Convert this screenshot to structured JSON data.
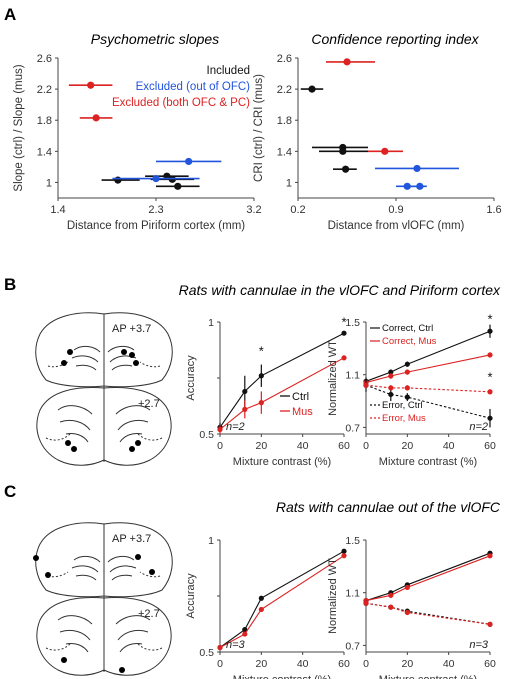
{
  "figure": {
    "panels": [
      {
        "letter": "A",
        "title_left": "Psychometric slopes",
        "title_right": "Confidence reporting index"
      },
      {
        "letter": "B",
        "title": "Rats with cannulae in the vlOFC and Piriform cortex"
      },
      {
        "letter": "C",
        "title": "Rats with cannulae out of the vlOFC"
      }
    ]
  },
  "colors": {
    "included": "#111111",
    "excluded_out_ofc": "#2255dd",
    "excluded_both": "#dd2222",
    "mus": "#dd2222",
    "ctrl": "#111111",
    "axis": "#444444"
  },
  "brain": {
    "b": {
      "label_top": "AP +3.7",
      "label_bottom": "+2.7"
    },
    "c": {
      "label_top": "AP +3.7",
      "label_bottom": "+2.7"
    }
  },
  "chart_data": [
    {
      "id": "a-left",
      "type": "scatter",
      "title": "Psychometric slopes",
      "xlabel": "Distance from Piriform cortex (mm)",
      "ylabel": "Slope (ctrl) / Slope (mus)",
      "xlim": [
        1.4,
        3.2
      ],
      "ylim": [
        0.8,
        2.6
      ],
      "xticks": [
        "1.4",
        "2.3",
        "3.2"
      ],
      "yticks": [
        "1",
        "1.4",
        "1.8",
        "2.2",
        "2.6"
      ],
      "legend": [
        "Included",
        "Excluded (out of OFC)",
        "Excluded (both OFC & PC)"
      ],
      "series": [
        {
          "name": "Included",
          "group": "included",
          "points": [
            {
              "x": 1.95,
              "y": 1.03,
              "xerr": [
                1.8,
                2.15
              ]
            },
            {
              "x": 2.4,
              "y": 1.08,
              "xerr": [
                2.2,
                2.6
              ]
            },
            {
              "x": 2.45,
              "y": 1.04,
              "xerr": [
                2.25,
                2.65
              ]
            },
            {
              "x": 2.5,
              "y": 0.95,
              "xerr": [
                2.3,
                2.7
              ]
            }
          ]
        },
        {
          "name": "Excluded (out of OFC)",
          "group": "excluded_out_ofc",
          "points": [
            {
              "x": 2.3,
              "y": 1.05,
              "xerr": [
                1.9,
                2.7
              ]
            },
            {
              "x": 2.6,
              "y": 1.27,
              "xerr": [
                2.3,
                2.9
              ]
            }
          ]
        },
        {
          "name": "Excluded (both OFC & PC)",
          "group": "excluded_both",
          "points": [
            {
              "x": 1.7,
              "y": 2.25,
              "xerr": [
                1.5,
                1.9
              ]
            },
            {
              "x": 1.75,
              "y": 1.83,
              "xerr": [
                1.6,
                1.9
              ]
            }
          ]
        }
      ]
    },
    {
      "id": "a-right",
      "type": "scatter",
      "title": "Confidence reporting index",
      "xlabel": "Distance from vlOFC (mm)",
      "ylabel": "CRI (ctrl) / CRI (mus)",
      "xlim": [
        0.2,
        1.6
      ],
      "ylim": [
        0.8,
        2.6
      ],
      "xticks": [
        "0.2",
        "0.9",
        "1.6"
      ],
      "yticks": [
        "1",
        "1.4",
        "1.8",
        "2.2",
        "2.6"
      ],
      "series": [
        {
          "name": "Included",
          "group": "included",
          "points": [
            {
              "x": 0.3,
              "y": 2.2,
              "xerr": [
                0.22,
                0.38
              ]
            },
            {
              "x": 0.52,
              "y": 1.45,
              "xerr": [
                0.3,
                0.7
              ]
            },
            {
              "x": 0.52,
              "y": 1.4,
              "xerr": [
                0.35,
                0.7
              ]
            },
            {
              "x": 0.54,
              "y": 1.17,
              "xerr": [
                0.45,
                0.62
              ]
            }
          ]
        },
        {
          "name": "Excluded (out of OFC)",
          "group": "excluded_out_ofc",
          "points": [
            {
              "x": 1.05,
              "y": 1.18,
              "xerr": [
                0.75,
                1.35
              ]
            },
            {
              "x": 0.98,
              "y": 0.95,
              "xerr": [
                0.9,
                1.1
              ]
            },
            {
              "x": 1.07,
              "y": 0.95,
              "xerr": [
                0.98,
                1.12
              ]
            }
          ]
        },
        {
          "name": "Excluded (both OFC & PC)",
          "group": "excluded_both",
          "points": [
            {
              "x": 0.55,
              "y": 2.55,
              "xerr": [
                0.4,
                0.75
              ]
            },
            {
              "x": 0.82,
              "y": 1.4,
              "xerr": [
                0.7,
                0.95
              ]
            }
          ]
        }
      ]
    },
    {
      "id": "b-accuracy",
      "type": "line",
      "xlabel": "Mixture contrast (%)",
      "ylabel": "Accuracy",
      "xlim": [
        0,
        60
      ],
      "ylim": [
        0.5,
        1.0
      ],
      "xticks": [
        "0",
        "20",
        "40",
        "60"
      ],
      "yticks": [
        "0.5",
        "",
        "1"
      ],
      "annotation": "n=2",
      "series": [
        {
          "name": "Ctrl",
          "group": "ctrl",
          "x": [
            0,
            12,
            20,
            60
          ],
          "values": [
            0.53,
            0.69,
            0.76,
            0.95
          ],
          "err": [
            0.02,
            0.07,
            0.05,
            0.01
          ]
        },
        {
          "name": "Mus",
          "group": "mus",
          "x": [
            0,
            12,
            20,
            60
          ],
          "values": [
            0.52,
            0.61,
            0.64,
            0.84
          ],
          "err": [
            0.02,
            0.04,
            0.05,
            0.01
          ]
        }
      ],
      "stars": [
        {
          "x": 20,
          "y": 0.85
        },
        {
          "x": 60,
          "y": 0.98
        }
      ]
    },
    {
      "id": "b-wt",
      "type": "line",
      "xlabel": "Mixture contrast (%)",
      "ylabel": "Normalized WT",
      "xlim": [
        0,
        60
      ],
      "ylim": [
        0.65,
        1.5
      ],
      "xticks": [
        "0",
        "20",
        "40",
        "60"
      ],
      "yticks": [
        "0.7",
        "1.1",
        "1.5"
      ],
      "annotation": "n=2",
      "legend": [
        "Correct, Ctrl",
        "Correct, Mus",
        "Error, Ctrl",
        "Error, Mus"
      ],
      "series": [
        {
          "name": "Correct, Ctrl",
          "group": "ctrl",
          "dashed": false,
          "x": [
            0,
            12,
            20,
            60
          ],
          "values": [
            1.05,
            1.12,
            1.18,
            1.43
          ],
          "err": [
            0.03,
            0.02,
            0.02,
            0.05
          ]
        },
        {
          "name": "Correct, Mus",
          "group": "mus",
          "dashed": false,
          "x": [
            0,
            12,
            20,
            60
          ],
          "values": [
            1.04,
            1.09,
            1.12,
            1.25
          ],
          "err": [
            0.02,
            0.02,
            0.02,
            0.02
          ]
        },
        {
          "name": "Error, Ctrl",
          "group": "ctrl",
          "dashed": true,
          "x": [
            0,
            12,
            20,
            60
          ],
          "values": [
            1.02,
            0.95,
            0.93,
            0.77
          ],
          "err": [
            0.05,
            0.05,
            0.03,
            0.07
          ]
        },
        {
          "name": "Error, Mus",
          "group": "mus",
          "dashed": true,
          "x": [
            0,
            12,
            20,
            60
          ],
          "values": [
            1.02,
            1.0,
            1.0,
            0.97
          ],
          "err": [
            0.02,
            0.02,
            0.02,
            0.02
          ]
        }
      ],
      "stars": [
        {
          "x": 60,
          "y": 1.49
        },
        {
          "x": 60,
          "y": 1.05
        }
      ]
    },
    {
      "id": "c-accuracy",
      "type": "line",
      "xlabel": "Mixture contrast (%)",
      "ylabel": "Accuracy",
      "xlim": [
        0,
        60
      ],
      "ylim": [
        0.5,
        1.0
      ],
      "xticks": [
        "0",
        "20",
        "40",
        "60"
      ],
      "yticks": [
        "0.5",
        "",
        "1"
      ],
      "annotation": "n=3",
      "series": [
        {
          "name": "Ctrl",
          "group": "ctrl",
          "x": [
            0,
            12,
            20,
            60
          ],
          "values": [
            0.52,
            0.6,
            0.74,
            0.95
          ],
          "err": [
            0.01,
            0.01,
            0.01,
            0.01
          ]
        },
        {
          "name": "Mus",
          "group": "mus",
          "x": [
            0,
            12,
            20,
            60
          ],
          "values": [
            0.52,
            0.58,
            0.69,
            0.93
          ],
          "err": [
            0.01,
            0.01,
            0.01,
            0.01
          ]
        }
      ]
    },
    {
      "id": "c-wt",
      "type": "line",
      "xlabel": "Mixture contrast (%)",
      "ylabel": "Normalized WT",
      "xlim": [
        0,
        60
      ],
      "ylim": [
        0.65,
        1.5
      ],
      "xticks": [
        "0",
        "20",
        "40",
        "60"
      ],
      "yticks": [
        "0.7",
        "1.1",
        "1.5"
      ],
      "annotation": "n=3",
      "series": [
        {
          "name": "Correct, Ctrl",
          "group": "ctrl",
          "dashed": false,
          "x": [
            0,
            12,
            20,
            60
          ],
          "values": [
            1.04,
            1.1,
            1.16,
            1.4
          ],
          "err": [
            0.01,
            0.01,
            0.01,
            0.01
          ]
        },
        {
          "name": "Correct, Mus",
          "group": "mus",
          "dashed": false,
          "x": [
            0,
            12,
            20,
            60
          ],
          "values": [
            1.04,
            1.08,
            1.14,
            1.38
          ],
          "err": [
            0.01,
            0.01,
            0.01,
            0.01
          ]
        },
        {
          "name": "Error, Ctrl",
          "group": "ctrl",
          "dashed": true,
          "x": [
            0,
            12,
            20,
            60
          ],
          "values": [
            1.02,
            0.99,
            0.96,
            0.86
          ],
          "err": [
            0.01,
            0.01,
            0.01,
            0.01
          ]
        },
        {
          "name": "Error, Mus",
          "group": "mus",
          "dashed": true,
          "x": [
            0,
            12,
            20,
            60
          ],
          "values": [
            1.02,
            0.99,
            0.95,
            0.86
          ],
          "err": [
            0.01,
            0.01,
            0.01,
            0.01
          ]
        }
      ]
    }
  ]
}
